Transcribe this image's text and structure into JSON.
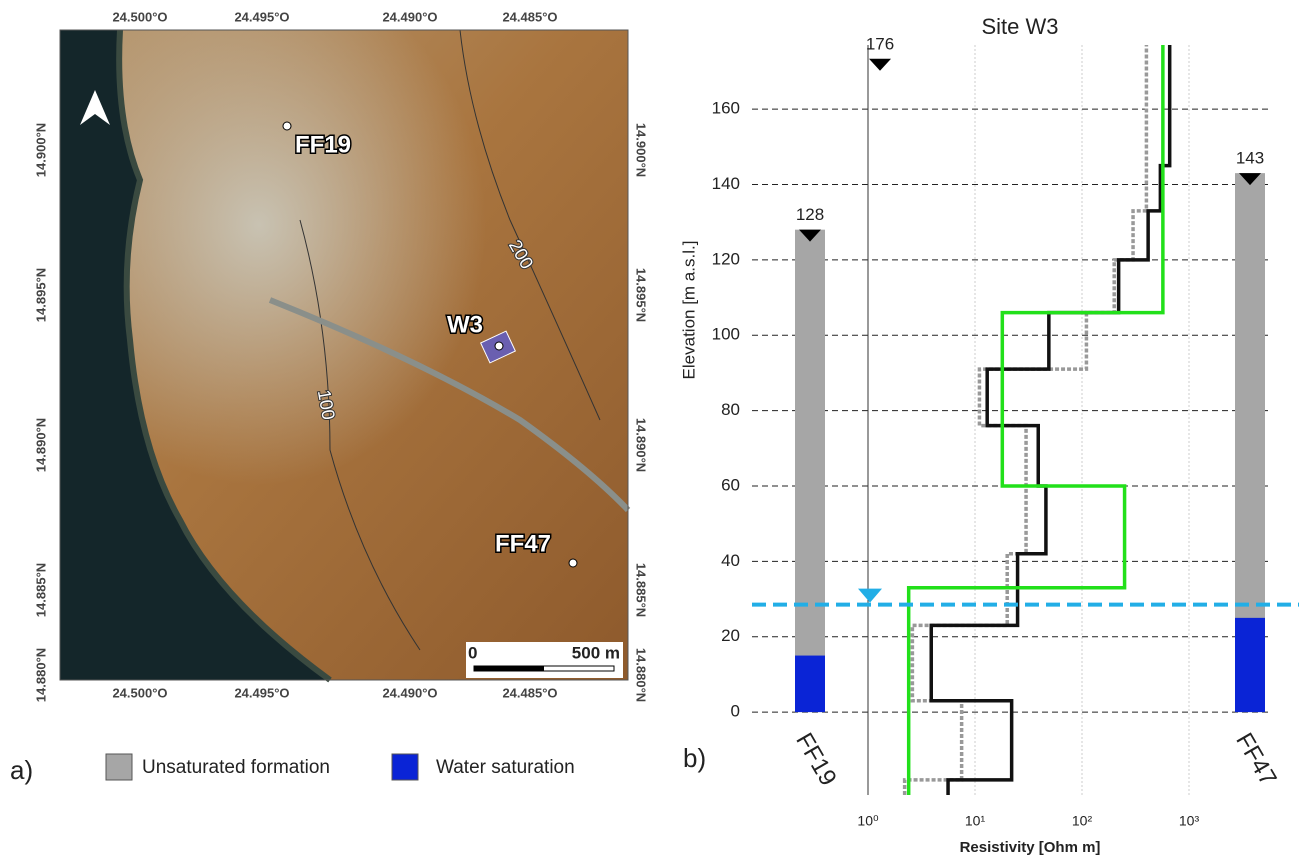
{
  "map": {
    "lon_ticks": [
      "24.500°O",
      "24.495°O",
      "24.490°O",
      "24.485°O"
    ],
    "lat_ticks": [
      "14.900°N",
      "14.895°N",
      "14.890°N",
      "14.885°N",
      "14.880°N"
    ],
    "sites": [
      "FF19",
      "W3",
      "FF47"
    ],
    "contours": [
      "200",
      "100"
    ],
    "scale": [
      "0",
      "500 m"
    ],
    "panel": "a)"
  },
  "legend": [
    {
      "name": "Unsaturated formation",
      "color": "#a6a6a6"
    },
    {
      "name": "Water saturation",
      "color": "#0a24d6"
    }
  ],
  "chart_data": {
    "type": "line",
    "title": "Site W3",
    "panel": "b)",
    "x_label": "Resistivity [Ohm m]",
    "y_label": "Elevation [m a.s.l.]",
    "log_x": true,
    "grid": true,
    "xlim": [
      1,
      1000
    ],
    "xticks": [
      {
        "value": 1,
        "label": "10⁰"
      },
      {
        "value": 10,
        "label": "10¹"
      },
      {
        "value": 100,
        "label": "10²"
      },
      {
        "value": 1000,
        "label": "10³"
      }
    ],
    "ylim": [
      -22,
      177
    ],
    "yticks": [
      0,
      20,
      40,
      60,
      80,
      100,
      120,
      140,
      160
    ],
    "surface_elevation": 176,
    "water_table": 28.5,
    "water_table_color": "#22aee6",
    "series": [
      {
        "color": "#999999",
        "dash": true,
        "x": [
          2.2,
          2.2,
          7.5,
          7.5,
          2.6,
          2.6,
          20,
          20,
          30,
          30,
          11,
          11,
          110,
          110,
          200,
          200,
          300,
          300,
          400,
          400
        ],
        "values": [
          -22,
          -18,
          -18,
          3,
          3,
          23,
          23,
          42,
          42,
          76,
          76,
          91,
          91,
          106,
          106,
          120,
          120,
          133,
          133,
          177
        ]
      },
      {
        "color": "#111111",
        "dash": false,
        "x": [
          5.6,
          5.6,
          22,
          22,
          3.9,
          3.9,
          25,
          25,
          46,
          46,
          39,
          39,
          13,
          13,
          49,
          49,
          220,
          220,
          415,
          415,
          540,
          540,
          660,
          660
        ],
        "values": [
          -22,
          -18,
          -18,
          3,
          3,
          23,
          23,
          42,
          42,
          60,
          60,
          76,
          76,
          91,
          91,
          106,
          106,
          120,
          120,
          133,
          133,
          145,
          145,
          177
        ]
      },
      {
        "color": "#22e01a",
        "dash": false,
        "x": [
          2.4,
          2.4,
          250,
          250,
          18,
          18,
          570,
          570
        ],
        "values": [
          -22,
          33,
          33,
          60,
          60,
          106,
          106,
          177
        ]
      }
    ],
    "boreholes": [
      {
        "name": "FF19",
        "top": 128,
        "water_level": 15
      },
      {
        "name": "FF47",
        "top": 143,
        "water_level": 25
      }
    ]
  }
}
